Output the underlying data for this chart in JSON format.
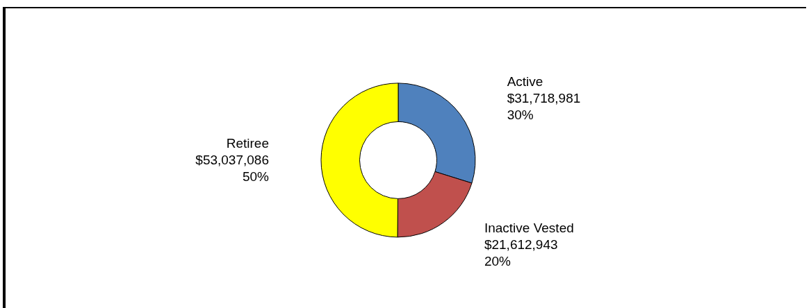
{
  "chart_data": {
    "type": "donut",
    "categories": [
      "Active",
      "Inactive Vested",
      "Retiree"
    ],
    "values": [
      31718981,
      21612943,
      53037086
    ],
    "value_labels": [
      "$31,718,981\n30%",
      "$21,612,943\n20%",
      "$53,037,086\n50%"
    ],
    "colors": [
      "#4f81bd",
      "#c0504d",
      "#ffff00"
    ],
    "legend": false
  }
}
